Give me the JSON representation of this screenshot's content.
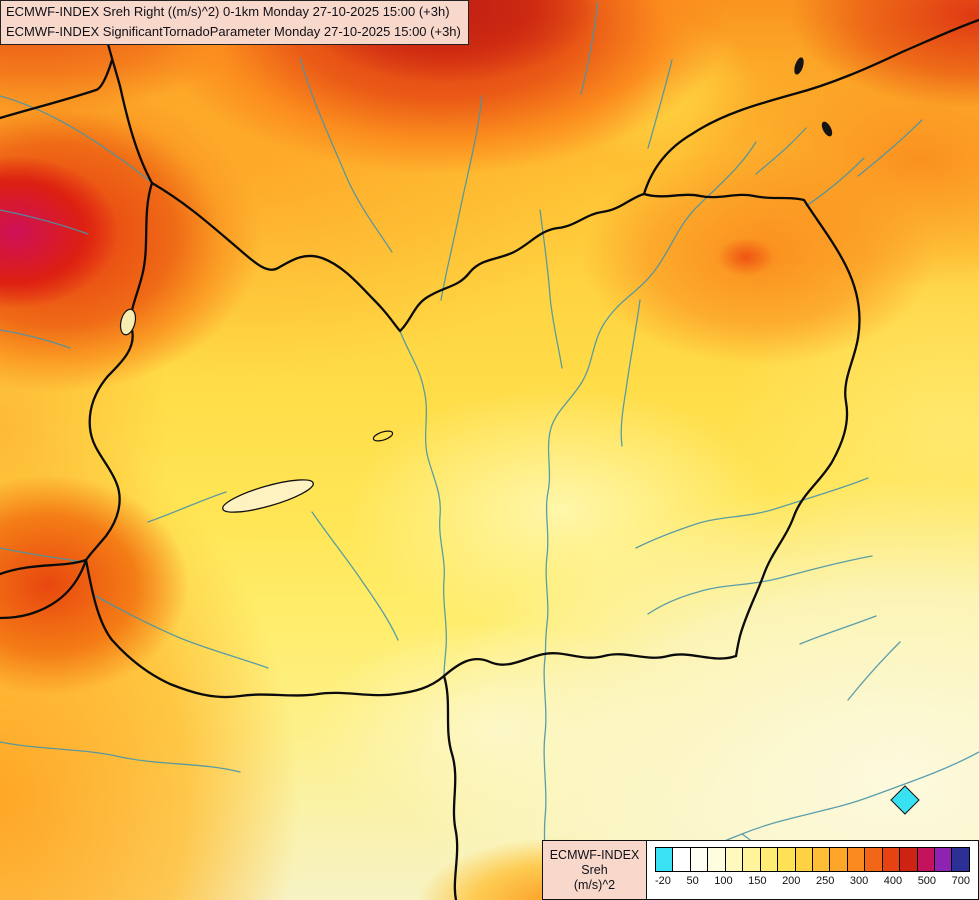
{
  "header": {
    "line1": "ECMWF-INDEX Sreh Right ((m/s)^2) 0-1km Monday 27-10-2025 15:00 (+3h)",
    "line2": "ECMWF-INDEX SignificantTornadoParameter Monday 27-10-2025 15:00 (+3h)"
  },
  "legend": {
    "title": "ECMWF-INDEX",
    "subtitle": "Sreh",
    "units": "(m/s)^2",
    "tick_labels": [
      "-20",
      "50",
      "100",
      "150",
      "200",
      "250",
      "300",
      "400",
      "500",
      "700"
    ],
    "cells": [
      {
        "color": "#3ae1f2"
      },
      {
        "color": "#ffffff"
      },
      {
        "color": "#fffff4"
      },
      {
        "color": "#fffde0"
      },
      {
        "color": "#fff9c0"
      },
      {
        "color": "#fff39b"
      },
      {
        "color": "#ffec75"
      },
      {
        "color": "#ffe156"
      },
      {
        "color": "#ffd244"
      },
      {
        "color": "#ffbe36"
      },
      {
        "color": "#ffa52a"
      },
      {
        "color": "#fb8a1e"
      },
      {
        "color": "#f26618"
      },
      {
        "color": "#e74312"
      },
      {
        "color": "#ce2313"
      },
      {
        "color": "#c5125c"
      },
      {
        "color": "#8d23b0"
      },
      {
        "color": "#2b2f96"
      }
    ]
  }
}
